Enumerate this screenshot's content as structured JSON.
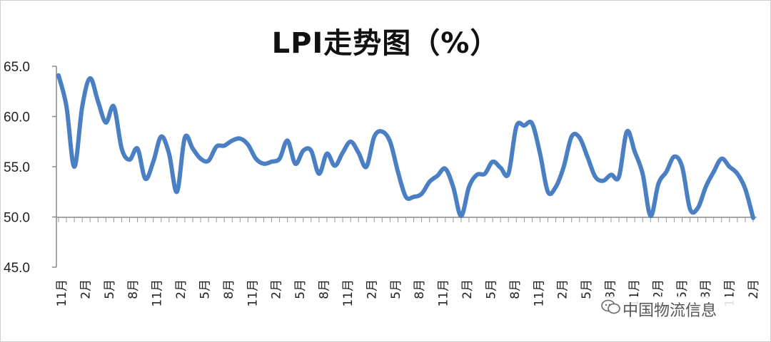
{
  "chart_data": {
    "type": "line",
    "title": "LPI走势图（%）",
    "xlabel": "",
    "ylabel": "",
    "ylim": [
      45,
      65
    ],
    "yticks": [
      "65.0",
      "60.0",
      "55.0",
      "50.0",
      "45.0"
    ],
    "reference_line": 50,
    "grid": false,
    "legend": "none",
    "line_color": "#4a7fc4",
    "tick_labels": [
      "11月",
      "2月",
      "5月",
      "8月",
      "11月",
      "2月",
      "5月",
      "8月",
      "11月",
      "2月",
      "5月",
      "8月",
      "11月",
      "2月",
      "5月",
      "8月",
      "11月",
      "2月",
      "5月",
      "8月",
      "11月",
      "2月",
      "5月",
      "8月",
      "11月",
      "2月",
      "5月",
      "8月",
      "11月",
      "2月"
    ],
    "series": [
      {
        "values": [
          64.1,
          61.0,
          55.0,
          61.0,
          63.8,
          61.5,
          59.4,
          61.0,
          56.8,
          55.7,
          56.8,
          53.8,
          55.5,
          58.0,
          56.3,
          52.5,
          57.9,
          56.8,
          55.8,
          55.6,
          57.0,
          57.1,
          57.6,
          57.8,
          57.2,
          55.8,
          55.3,
          55.5,
          55.8,
          57.6,
          55.3,
          56.6,
          56.6,
          54.3,
          56.3,
          55.1,
          56.4,
          57.5,
          56.4,
          55.0,
          58.0,
          58.5,
          57.5,
          54.5,
          52.0,
          52.0,
          52.3,
          53.5,
          54.1,
          54.8,
          53.0,
          50.1,
          53.0,
          54.2,
          54.3,
          55.5,
          54.9,
          54.3,
          59.0,
          59.1,
          59.3,
          56.3,
          52.5,
          53.0,
          55.0,
          58.0,
          57.9,
          56.0,
          54.0,
          53.6,
          54.2,
          54.0,
          58.5,
          56.5,
          54.3,
          50.1,
          53.3,
          54.5,
          56.0,
          55.0,
          50.8,
          50.9,
          53.0,
          54.5,
          55.8,
          55.0,
          54.3,
          52.8,
          49.9
        ]
      }
    ],
    "watermark": "中国物流信息"
  }
}
